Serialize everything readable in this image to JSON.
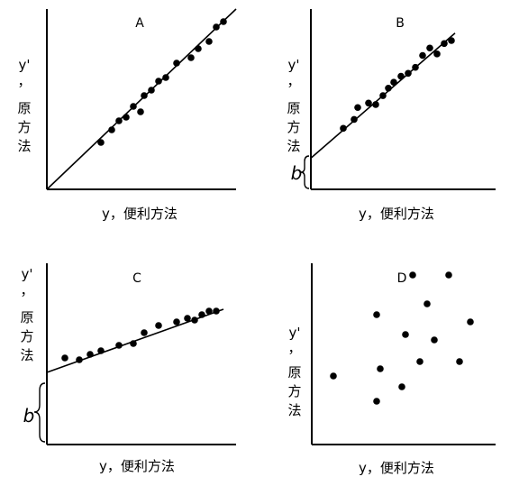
{
  "chart_data": [
    {
      "type": "scatter",
      "title": "A",
      "xlabel": "y，便利方法",
      "ylabel": [
        "y'",
        "，",
        "原",
        "方",
        "法"
      ],
      "intercept_label": "",
      "points": [
        [
          0.3,
          0.26
        ],
        [
          0.36,
          0.33
        ],
        [
          0.4,
          0.38
        ],
        [
          0.44,
          0.4
        ],
        [
          0.48,
          0.46
        ],
        [
          0.52,
          0.43
        ],
        [
          0.54,
          0.52
        ],
        [
          0.58,
          0.55
        ],
        [
          0.62,
          0.6
        ],
        [
          0.66,
          0.62
        ],
        [
          0.72,
          0.7
        ],
        [
          0.8,
          0.73
        ],
        [
          0.84,
          0.78
        ],
        [
          0.9,
          0.82
        ],
        [
          0.94,
          0.9
        ],
        [
          0.98,
          0.93
        ]
      ],
      "fit_line": {
        "x": [
          0,
          1.05
        ],
        "y": [
          0,
          1.0
        ]
      }
    },
    {
      "type": "scatter",
      "title": "B",
      "xlabel": "y，便利方法",
      "ylabel": [
        "y'",
        "，",
        "原",
        "方",
        "法"
      ],
      "intercept_label": "b",
      "points": [
        [
          0.18,
          0.41
        ],
        [
          0.24,
          0.47
        ],
        [
          0.26,
          0.55
        ],
        [
          0.32,
          0.58
        ],
        [
          0.36,
          0.57
        ],
        [
          0.4,
          0.63
        ],
        [
          0.43,
          0.68
        ],
        [
          0.46,
          0.72
        ],
        [
          0.5,
          0.76
        ],
        [
          0.54,
          0.78
        ],
        [
          0.58,
          0.82
        ],
        [
          0.62,
          0.9
        ],
        [
          0.66,
          0.95
        ],
        [
          0.7,
          0.91
        ],
        [
          0.74,
          0.98
        ],
        [
          0.78,
          1.0
        ]
      ],
      "fit_line": {
        "x": [
          0,
          0.8
        ],
        "y": [
          0.21,
          1.05
        ]
      }
    },
    {
      "type": "scatter",
      "title": "C",
      "xlabel": "y，便利方法",
      "ylabel": [
        "y'",
        "，",
        "原",
        "方",
        "法"
      ],
      "intercept_label": "b",
      "points": [
        [
          0.1,
          0.48
        ],
        [
          0.18,
          0.47
        ],
        [
          0.24,
          0.5
        ],
        [
          0.3,
          0.52
        ],
        [
          0.4,
          0.55
        ],
        [
          0.48,
          0.56
        ],
        [
          0.54,
          0.62
        ],
        [
          0.62,
          0.66
        ],
        [
          0.72,
          0.68
        ],
        [
          0.78,
          0.7
        ],
        [
          0.82,
          0.69
        ],
        [
          0.86,
          0.72
        ],
        [
          0.9,
          0.74
        ],
        [
          0.94,
          0.74
        ]
      ],
      "fit_line": {
        "x": [
          0,
          0.98
        ],
        "y": [
          0.4,
          0.75
        ]
      }
    },
    {
      "type": "scatter",
      "title": "D",
      "xlabel": "y，便利方法",
      "ylabel": [
        "y'",
        "，",
        "原",
        "方",
        "法"
      ],
      "intercept_label": "",
      "points": [
        [
          0.12,
          0.38
        ],
        [
          0.36,
          0.24
        ],
        [
          0.36,
          0.72
        ],
        [
          0.38,
          0.42
        ],
        [
          0.5,
          0.32
        ],
        [
          0.52,
          0.61
        ],
        [
          0.56,
          0.94
        ],
        [
          0.6,
          0.46
        ],
        [
          0.64,
          0.78
        ],
        [
          0.68,
          0.58
        ],
        [
          0.76,
          0.94
        ],
        [
          0.82,
          0.46
        ],
        [
          0.88,
          0.68
        ]
      ],
      "fit_line": null
    }
  ]
}
